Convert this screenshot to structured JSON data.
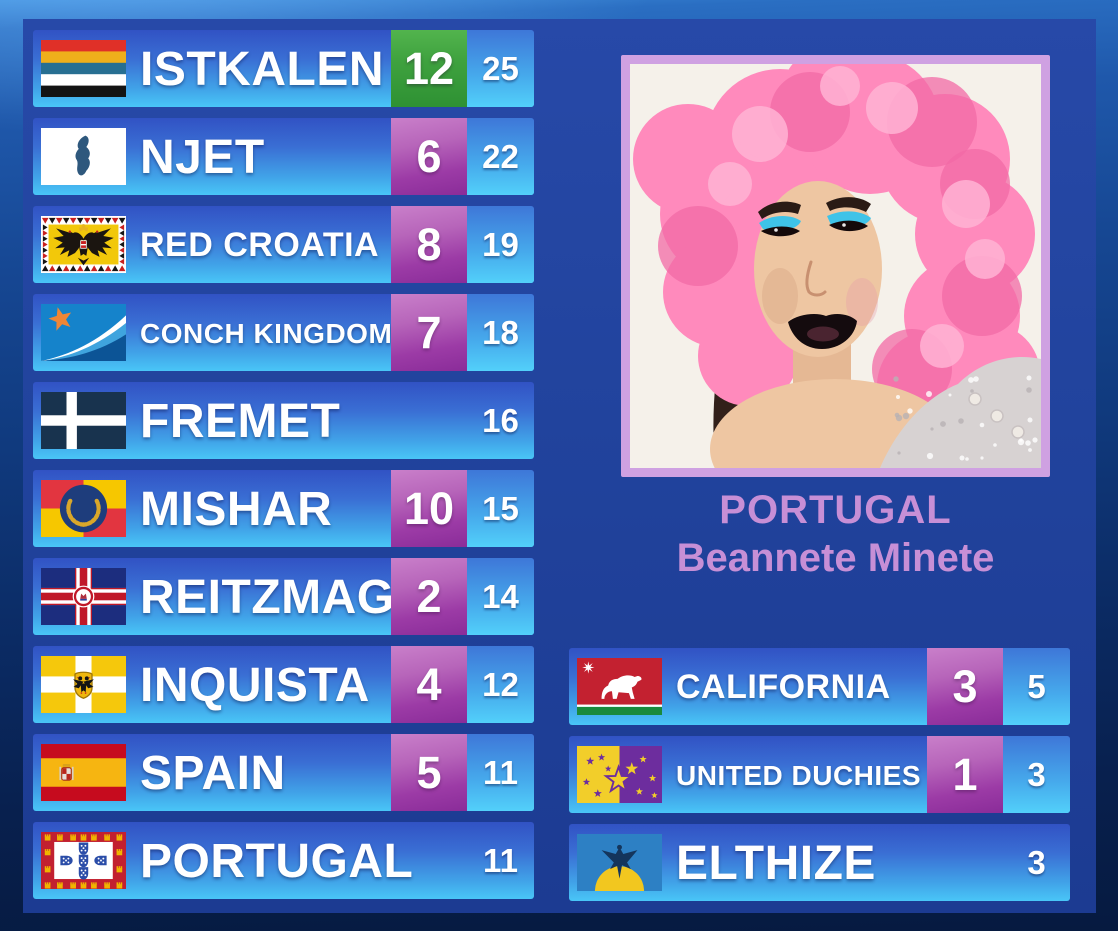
{
  "scoreboard_left": {
    "rows": [
      {
        "name": "ISTKALEN",
        "flag": "istkalen-flag",
        "points": "12",
        "total": "25",
        "points_variant": "green"
      },
      {
        "name": "NJET",
        "flag": "njet-flag",
        "points": "6",
        "total": "22",
        "points_variant": "purple"
      },
      {
        "name": "RED CROATIA",
        "flag": "red-croatia-flag",
        "points": "8",
        "total": "19",
        "points_variant": "purple"
      },
      {
        "name": "CONCH KINGDOM",
        "flag": "conch-kingdom-flag",
        "points": "7",
        "total": "18",
        "points_variant": "purple"
      },
      {
        "name": "FREMET",
        "flag": "fremet-flag",
        "points": null,
        "total": "16",
        "points_variant": null
      },
      {
        "name": "MISHAR",
        "flag": "mishar-flag",
        "points": "10",
        "total": "15",
        "points_variant": "purple"
      },
      {
        "name": "REITZMAG",
        "flag": "reitzmag-flag",
        "points": "2",
        "total": "14",
        "points_variant": "purple"
      },
      {
        "name": "INQUISTA",
        "flag": "inquista-flag",
        "points": "4",
        "total": "12",
        "points_variant": "purple"
      },
      {
        "name": "SPAIN",
        "flag": "spain-flag",
        "points": "5",
        "total": "11",
        "points_variant": "purple"
      },
      {
        "name": "PORTUGAL",
        "flag": "portugal-flag",
        "points": null,
        "total": "11",
        "points_variant": null
      }
    ]
  },
  "scoreboard_right": {
    "rows": [
      {
        "name": "CALIFORNIA",
        "flag": "california-flag",
        "points": "3",
        "total": "5",
        "points_variant": "purple"
      },
      {
        "name": "UNITED DUCHIES",
        "flag": "united-duchies-flag",
        "points": "1",
        "total": "3",
        "points_variant": "purple"
      },
      {
        "name": "ELTHIZE",
        "flag": "elthize-flag",
        "points": null,
        "total": "3",
        "points_variant": null
      }
    ]
  },
  "entry_card": {
    "country": "PORTUGAL",
    "artist": "Beannete Minete",
    "photo": "portugal-entry-photo"
  },
  "colors": {
    "accent_green": "#2f9636",
    "accent_purple": "#9a3aa5",
    "caption_pink": "#c78fd6",
    "row_blue_top": "#3152c4",
    "row_blue_bottom": "#49c6f7",
    "frame_navy": "#21439d"
  }
}
